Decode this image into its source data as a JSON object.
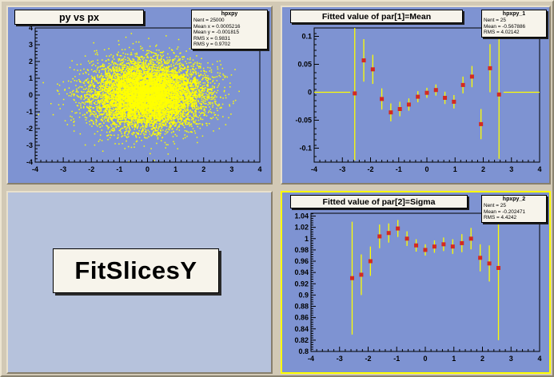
{
  "colors": {
    "canvas_background": "#d2c9b5",
    "pad_background": "#7e93d2",
    "label_pad_background": "#b6c2dc",
    "pave_background": "#f7f4eb",
    "data_yellow": "#ffff00",
    "marker_red": "#d42a20",
    "selected_pad_border": "#ffff00"
  },
  "pads": {
    "scatter": {
      "title": "py vs px",
      "stats": {
        "name": "hpxpy",
        "lines": [
          "Nent = 25000",
          "Mean x = 0.0005216",
          "Mean y = -0.001815",
          "RMS x  = 0.9831",
          "RMS y  = 0.9702"
        ]
      }
    },
    "mean": {
      "title": "Fitted value of par[1]=Mean",
      "stats": {
        "name": "hpxpy_1",
        "lines": [
          "Nent = 25",
          "Mean  = -0.567886",
          "RMS   = 4.02142"
        ]
      }
    },
    "label_pad": {
      "text": "FitSlicesY"
    },
    "sigma": {
      "title": "Fitted value of par[2]=Sigma",
      "stats": {
        "name": "hpxpy_2",
        "lines": [
          "Nent = 25",
          "Mean  = -0.202471",
          "RMS   = 4.4242"
        ]
      }
    }
  },
  "chart_data": [
    {
      "id": "pxpy-scatter",
      "type": "scatter",
      "title": "py vs px",
      "xlabel": "",
      "ylabel": "",
      "xlim": [
        -4,
        4
      ],
      "ylim": [
        -4,
        4
      ],
      "xticks": [
        -4,
        -3,
        -2,
        -1,
        0,
        1,
        2,
        3,
        4
      ],
      "xtick_labels": [
        "-4",
        "-3",
        "-2",
        "-1",
        "0",
        "1",
        "2",
        "3",
        "4"
      ],
      "yticks": [
        -4,
        -3,
        -2,
        -1,
        0,
        1,
        2,
        3,
        4
      ],
      "ytick_labels": [
        "-4",
        "-3",
        "-2",
        "-1",
        "0",
        "1",
        "2",
        "3",
        "4"
      ],
      "xminor": 0.2,
      "yminor": 0.2,
      "marker_color": "#ffff00",
      "distribution": {
        "kind": "gaussian2d",
        "n_entries": 25000,
        "rendered_points": 9000,
        "mean_x": 0,
        "mean_y": 0,
        "sigma_x": 1,
        "sigma_y": 1,
        "seed": 1234
      }
    },
    {
      "id": "fitted-mean",
      "type": "scatter",
      "title": "Fitted value of par[1]=Mean",
      "xlabel": "",
      "ylabel": "",
      "xlim": [
        -4,
        4
      ],
      "ylim": [
        -0.125,
        0.115
      ],
      "xticks": [
        -4,
        -3,
        -2,
        -1,
        0,
        1,
        2,
        3,
        4
      ],
      "xtick_labels": [
        "-4",
        "-3",
        "-2",
        "-1",
        "0",
        "1",
        "2",
        "3",
        "4"
      ],
      "yticks": [
        -0.1,
        -0.05,
        0,
        0.05,
        0.1
      ],
      "ytick_labels": [
        "-0.1",
        "-0.05",
        "0",
        "0.05",
        "0.1"
      ],
      "xminor": 0.2,
      "yminor": 0.01,
      "baseline": 0,
      "bin_half_width": 0.16,
      "marker_color": "#d42a20",
      "error_color": "#ffff00",
      "point_format": [
        "x",
        "y",
        "err"
      ],
      "points": [
        [
          -2.56,
          -0.002,
          0.12
        ],
        [
          -2.24,
          0.057,
          0.038
        ],
        [
          -1.92,
          0.041,
          0.026
        ],
        [
          -1.6,
          -0.012,
          0.019
        ],
        [
          -1.28,
          -0.036,
          0.016
        ],
        [
          -0.96,
          -0.03,
          0.013
        ],
        [
          -0.64,
          -0.022,
          0.011
        ],
        [
          -0.32,
          -0.008,
          0.01
        ],
        [
          0.0,
          -0.001,
          0.009
        ],
        [
          0.32,
          0.004,
          0.01
        ],
        [
          0.64,
          -0.01,
          0.011
        ],
        [
          0.96,
          -0.017,
          0.012
        ],
        [
          1.28,
          0.013,
          0.015
        ],
        [
          1.6,
          0.028,
          0.019
        ],
        [
          1.92,
          -0.057,
          0.027
        ],
        [
          2.24,
          0.043,
          0.043
        ],
        [
          2.56,
          -0.004,
          0.115
        ]
      ]
    },
    {
      "id": "fitted-sigma",
      "type": "scatter",
      "title": "Fitted value of par[2]=Sigma",
      "xlabel": "",
      "ylabel": "",
      "xlim": [
        -4,
        4
      ],
      "ylim": [
        0.8,
        1.045
      ],
      "xticks": [
        -4,
        -3,
        -2,
        -1,
        0,
        1,
        2,
        3,
        4
      ],
      "xtick_labels": [
        "-4",
        "-3",
        "-2",
        "-1",
        "0",
        "1",
        "2",
        "3",
        "4"
      ],
      "yticks": [
        0.8,
        0.82,
        0.84,
        0.86,
        0.88,
        0.9,
        0.92,
        0.94,
        0.96,
        0.98,
        1,
        1.02,
        1.04
      ],
      "ytick_labels": [
        "0.8",
        "0.82",
        "0.84",
        "0.86",
        "0.88",
        "0.9",
        "0.92",
        "0.94",
        "0.96",
        "0.98",
        "1",
        "1.02",
        "1.04"
      ],
      "xminor": 0.2,
      "yminor": 0.004,
      "bin_half_width": 0.16,
      "marker_color": "#d42a20",
      "error_color": "#ffff00",
      "point_format": [
        "x",
        "y",
        "err"
      ],
      "points": [
        [
          -2.56,
          0.93,
          0.1
        ],
        [
          -2.24,
          0.936,
          0.036
        ],
        [
          -1.92,
          0.96,
          0.026
        ],
        [
          -1.6,
          1.004,
          0.021
        ],
        [
          -1.28,
          1.01,
          0.017
        ],
        [
          -0.96,
          1.018,
          0.015
        ],
        [
          -0.64,
          1.0,
          0.013
        ],
        [
          -0.32,
          0.988,
          0.011
        ],
        [
          0.0,
          0.98,
          0.01
        ],
        [
          0.32,
          0.986,
          0.011
        ],
        [
          0.64,
          0.99,
          0.012
        ],
        [
          0.96,
          0.986,
          0.013
        ],
        [
          1.28,
          0.992,
          0.016
        ],
        [
          1.6,
          1.0,
          0.019
        ],
        [
          1.92,
          0.966,
          0.024
        ],
        [
          2.24,
          0.956,
          0.032
        ],
        [
          2.56,
          0.948,
          0.128
        ]
      ]
    }
  ]
}
